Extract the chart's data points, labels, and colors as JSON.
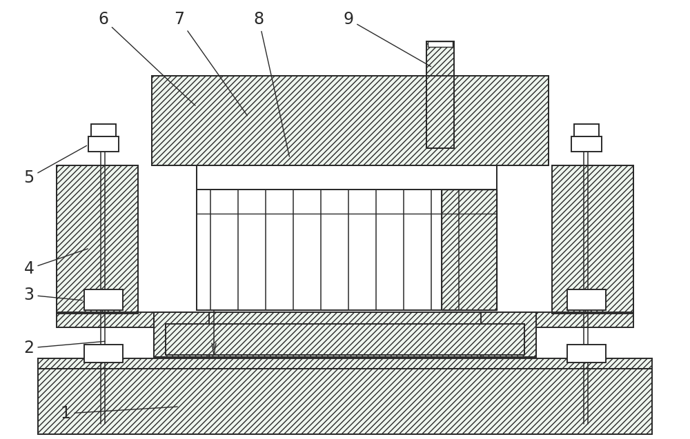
{
  "bg_color": "#ffffff",
  "lc": "#2a2a2a",
  "hfc": "#eef5ee",
  "fig_width": 10.0,
  "fig_height": 6.37,
  "label_fontsize": 17
}
